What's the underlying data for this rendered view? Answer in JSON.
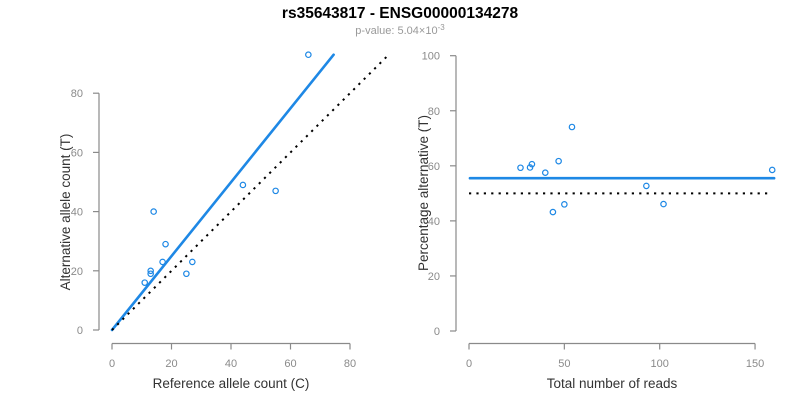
{
  "header": {
    "title": "rs35643817 - ENSG00000134278",
    "pvalue_base": "p-value: 5.04×10",
    "pvalue_exponent": "-3"
  },
  "colors": {
    "accent_blue": "#1E88E5",
    "dotted_black": "#000000",
    "axis_gray": "#8A8A8A",
    "tick_label_gray": "#8A8A8A",
    "axis_title_dark": "#333333",
    "title_black": "#000000",
    "subtitle_gray": "#999999",
    "background": "#FFFFFF"
  },
  "chart_data": [
    {
      "type": "scatter",
      "name": "allele-counts-panel",
      "title": "rs35643817 - ENSG00000134278",
      "subtitle": "p-value: 5.04×10^-3",
      "xlabel": "Reference allele count (C)",
      "ylabel": "Alternative allele count (T)",
      "xticks": [
        0,
        20,
        40,
        60,
        80
      ],
      "yticks": [
        0,
        20,
        40,
        60,
        80
      ],
      "xlim": [
        0,
        93
      ],
      "ylim": [
        0,
        93
      ],
      "grid": false,
      "points": [
        [
          11,
          16
        ],
        [
          13,
          19
        ],
        [
          13,
          20
        ],
        [
          14,
          40
        ],
        [
          17,
          23
        ],
        [
          18,
          29
        ],
        [
          25,
          19
        ],
        [
          27,
          23
        ],
        [
          44,
          49
        ],
        [
          55,
          47
        ],
        [
          66,
          93
        ]
      ],
      "lines": [
        {
          "name": "fit-line",
          "style": "solid",
          "color_key": "accent_blue",
          "x1": 0,
          "y1": 0,
          "x2": 74.5,
          "y2": 93
        },
        {
          "name": "identity-line",
          "style": "dotted",
          "color_key": "dotted_black",
          "x1": 0,
          "y1": 0,
          "x2": 93,
          "y2": 93
        }
      ]
    },
    {
      "type": "scatter",
      "name": "percentage-vs-reads-panel",
      "xlabel": "Total number of reads",
      "ylabel": "Percentage alternative (T)",
      "xticks": [
        0,
        50,
        100,
        150
      ],
      "yticks": [
        0,
        20,
        40,
        60,
        80,
        100
      ],
      "xlim": [
        0,
        160
      ],
      "ylim": [
        0,
        100
      ],
      "grid": false,
      "points": [
        [
          27,
          59.3
        ],
        [
          32,
          59.4
        ],
        [
          33,
          60.6
        ],
        [
          40,
          57.5
        ],
        [
          44,
          43.2
        ],
        [
          47,
          61.7
        ],
        [
          50,
          46
        ],
        [
          54,
          74.1
        ],
        [
          93,
          52.7
        ],
        [
          102,
          46.1
        ],
        [
          159,
          58.5
        ]
      ],
      "lines": [
        {
          "name": "mean-percentage-line",
          "style": "solid",
          "color_key": "accent_blue",
          "x1": 0.5,
          "y1": 55.5,
          "x2": 160,
          "y2": 55.5
        },
        {
          "name": "fifty-percent-line",
          "style": "dotted",
          "color_key": "dotted_black",
          "x1": 0,
          "y1": 50,
          "x2": 158,
          "y2": 50
        }
      ]
    }
  ]
}
